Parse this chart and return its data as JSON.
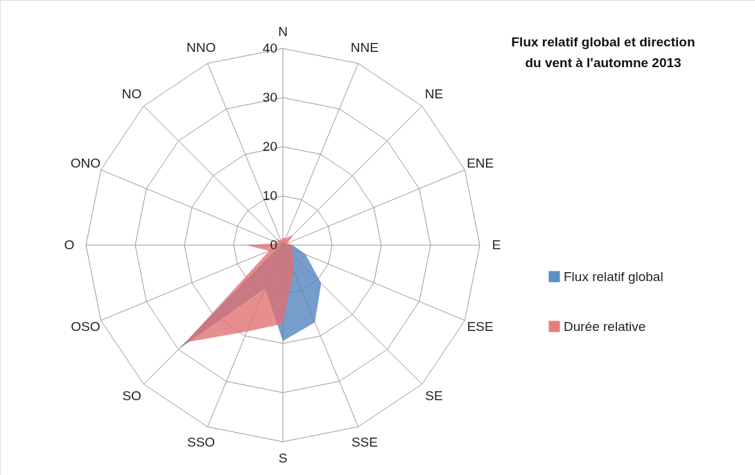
{
  "chart_data": {
    "type": "radar",
    "title": "Flux relatif global et direction du vent à l'automne 2013",
    "categories": [
      "N",
      "NNE",
      "NE",
      "ENE",
      "E",
      "ESE",
      "SE",
      "SSE",
      "S",
      "SSO",
      "SO",
      "OSO",
      "O",
      "ONO",
      "NO",
      "NNO"
    ],
    "series": [
      {
        "name": "Flux relatif global",
        "color": "#4f81bd",
        "values": [
          0.5,
          0.5,
          0.5,
          0.5,
          2,
          5,
          11,
          17,
          19.5,
          9.5,
          30,
          1,
          0.5,
          0.5,
          0.5,
          0.5
        ]
      },
      {
        "name": "Durée relative",
        "color": "#e07070",
        "values": [
          1.5,
          1.5,
          3,
          1,
          2,
          2,
          3,
          5.7,
          16,
          19,
          28,
          3,
          7.5,
          1,
          2,
          1
        ]
      }
    ],
    "ylim": [
      0,
      40
    ],
    "yticks": [
      0,
      10,
      20,
      30,
      40
    ],
    "grid": true,
    "legend": "right"
  }
}
